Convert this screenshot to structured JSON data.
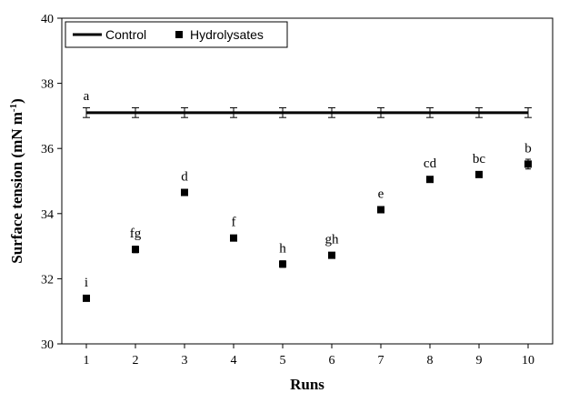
{
  "chart_data": {
    "type": "scatter",
    "xlabel": "Runs",
    "ylabel": "Surface tension (mN m",
    "ylabel_sup": "-1",
    "ylabel_close": ")",
    "xlim": [
      0.5,
      10.5
    ],
    "ylim": [
      30,
      40
    ],
    "x_ticks": [
      1,
      2,
      3,
      4,
      5,
      6,
      7,
      8,
      9,
      10
    ],
    "y_ticks": [
      30,
      32,
      34,
      36,
      38,
      40
    ],
    "grid": false,
    "legend_position": "top-left",
    "series": [
      {
        "name": "Control",
        "kind": "line",
        "color": "#000000",
        "x": [
          1,
          2,
          3,
          4,
          5,
          6,
          7,
          8,
          9,
          10
        ],
        "y": [
          37.1,
          37.1,
          37.1,
          37.1,
          37.1,
          37.1,
          37.1,
          37.1,
          37.1,
          37.1
        ],
        "error": [
          0.15,
          0.15,
          0.15,
          0.15,
          0.15,
          0.15,
          0.15,
          0.15,
          0.15,
          0.15
        ]
      },
      {
        "name": "Hydrolysates",
        "kind": "scatter",
        "marker": "square",
        "color": "#000000",
        "x": [
          1,
          2,
          3,
          4,
          5,
          6,
          7,
          8,
          9,
          10
        ],
        "y": [
          31.4,
          32.9,
          34.65,
          33.25,
          32.45,
          32.72,
          34.12,
          35.05,
          35.2,
          35.52
        ],
        "error": [
          0.05,
          0.1,
          0.05,
          0.05,
          0.1,
          0.05,
          0.05,
          0.05,
          0.05,
          0.15
        ]
      }
    ],
    "annotations": [
      {
        "text": "a",
        "x": 1,
        "y": 37.1,
        "series": "Control"
      },
      {
        "text": "i",
        "x": 1,
        "y": 31.4
      },
      {
        "text": "fg",
        "x": 2,
        "y": 32.9
      },
      {
        "text": "d",
        "x": 3,
        "y": 34.65
      },
      {
        "text": "f",
        "x": 4,
        "y": 33.25
      },
      {
        "text": "h",
        "x": 5,
        "y": 32.45
      },
      {
        "text": "gh",
        "x": 6,
        "y": 32.72
      },
      {
        "text": "e",
        "x": 7,
        "y": 34.12
      },
      {
        "text": "cd",
        "x": 8,
        "y": 35.05
      },
      {
        "text": "bc",
        "x": 9,
        "y": 35.2
      },
      {
        "text": "b",
        "x": 10,
        "y": 35.52
      }
    ]
  }
}
